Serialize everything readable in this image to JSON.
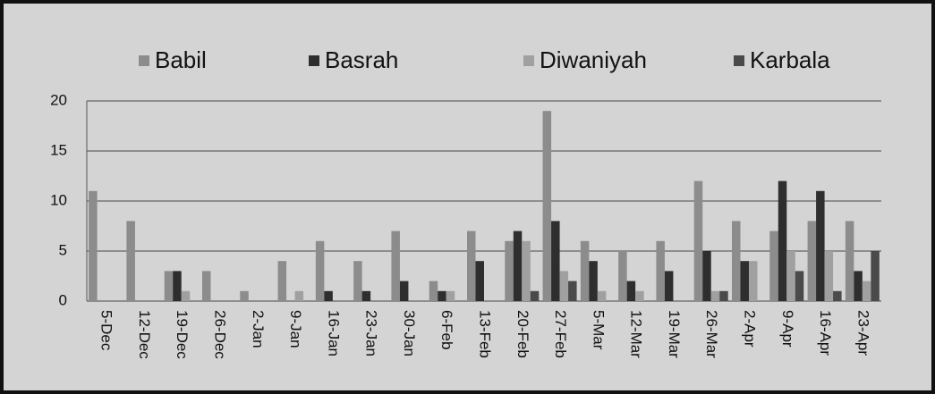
{
  "chart_data": {
    "type": "bar",
    "categories": [
      "5-Dec",
      "12-Dec",
      "19-Dec",
      "26-Dec",
      "2-Jan",
      "9-Jan",
      "16-Jan",
      "23-Jan",
      "30-Jan",
      "6-Feb",
      "13-Feb",
      "20-Feb",
      "27-Feb",
      "5-Mar",
      "12-Mar",
      "19-Mar",
      "26-Mar",
      "2-Apr",
      "9-Apr",
      "16-Apr",
      "23-Apr"
    ],
    "series": [
      {
        "name": "Babil",
        "color": "#8c8c8c",
        "values": [
          11,
          8,
          3,
          3,
          1,
          4,
          6,
          4,
          7,
          2,
          7,
          6,
          19,
          6,
          5,
          6,
          12,
          8,
          7,
          8,
          8
        ]
      },
      {
        "name": "Basrah",
        "color": "#2e2e2e",
        "values": [
          0,
          0,
          3,
          0,
          0,
          0,
          1,
          1,
          2,
          1,
          4,
          7,
          8,
          4,
          2,
          3,
          5,
          4,
          12,
          11,
          3
        ]
      },
      {
        "name": "Diwaniyah",
        "color": "#a0a0a0",
        "values": [
          0,
          0,
          1,
          0,
          0,
          1,
          0,
          0,
          0,
          1,
          0,
          6,
          3,
          1,
          1,
          0,
          1,
          4,
          5,
          5,
          2
        ]
      },
      {
        "name": "Karbala",
        "color": "#4a4a4a",
        "values": [
          0,
          0,
          0,
          0,
          0,
          0,
          0,
          0,
          0,
          0,
          0,
          1,
          2,
          0,
          0,
          0,
          1,
          0,
          3,
          1,
          5
        ]
      }
    ],
    "ylim": [
      0,
      20
    ],
    "yticks": [
      0,
      5,
      10,
      15,
      20
    ],
    "grid": true,
    "legend": "top"
  }
}
